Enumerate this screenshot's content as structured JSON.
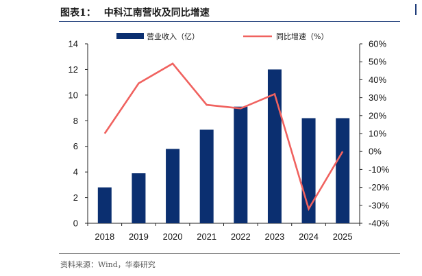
{
  "header": {
    "figure_label": "图表1：",
    "title": "中科江南营收及同比增速"
  },
  "source": "资料来源：Wind，华泰研究",
  "chart_data": {
    "type": "bar",
    "categories": [
      "2018",
      "2019",
      "2020",
      "2021",
      "2022",
      "2023",
      "2024",
      "2025"
    ],
    "series": [
      {
        "name": "营业收入（亿）",
        "type": "bar",
        "axis": "left",
        "color": "#0b2f70",
        "values": [
          2.8,
          3.9,
          5.8,
          7.3,
          9.1,
          12.0,
          8.2,
          8.2
        ]
      },
      {
        "name": "同比增速（%）",
        "type": "line",
        "axis": "right",
        "color": "#f0625f",
        "values": [
          10,
          38,
          49,
          26,
          24,
          32,
          -32,
          0
        ]
      }
    ],
    "y_left": {
      "min": 0,
      "max": 14,
      "ticks": [
        "0",
        "2",
        "4",
        "6",
        "8",
        "10",
        "12",
        "14"
      ]
    },
    "y_right": {
      "min": -40,
      "max": 60,
      "ticks": [
        "-40%",
        "-30%",
        "-20%",
        "-10%",
        "0%",
        "10%",
        "20%",
        "30%",
        "40%",
        "50%",
        "60%"
      ]
    },
    "legend_position": "top",
    "grid": false
  }
}
